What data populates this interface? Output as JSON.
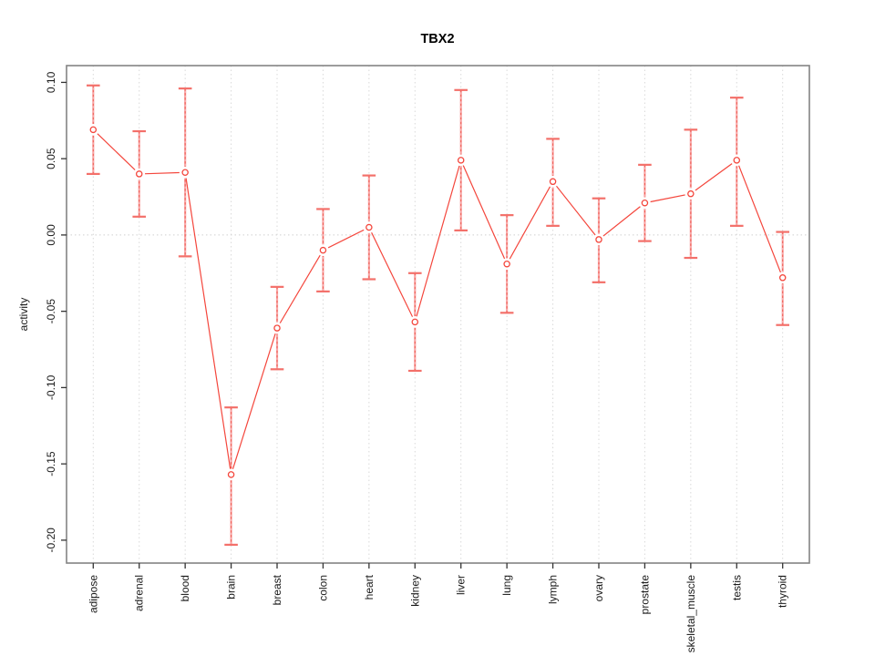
{
  "chart_data": {
    "type": "line",
    "title": "TBX2",
    "xlabel": "",
    "ylabel": "activity",
    "categories": [
      "adipose",
      "adrenal",
      "blood",
      "brain",
      "breast",
      "colon",
      "heart",
      "kidney",
      "liver",
      "lung",
      "lymph",
      "ovary",
      "prostate",
      "skeletal_muscle",
      "testis",
      "thyroid"
    ],
    "series": [
      {
        "name": "activity",
        "values": [
          0.069,
          0.04,
          0.041,
          -0.157,
          -0.061,
          -0.01,
          0.005,
          -0.057,
          0.049,
          -0.019,
          0.035,
          -0.003,
          0.021,
          0.027,
          0.049,
          -0.028
        ],
        "error_high": [
          0.098,
          0.068,
          0.096,
          -0.113,
          -0.034,
          0.017,
          0.039,
          -0.025,
          0.095,
          0.013,
          0.063,
          0.024,
          0.046,
          0.069,
          0.09,
          0.002
        ],
        "error_low": [
          0.04,
          0.012,
          -0.014,
          -0.203,
          -0.088,
          -0.037,
          -0.029,
          -0.089,
          0.003,
          -0.051,
          0.006,
          -0.031,
          -0.004,
          -0.015,
          0.006,
          -0.059
        ]
      }
    ],
    "ytick_labels": [
      "0.10",
      "0.05",
      "0.00",
      "-0.05",
      "-0.10",
      "-0.15",
      "-0.20"
    ],
    "ytick_values": [
      0.1,
      0.05,
      0.0,
      -0.05,
      -0.1,
      -0.15,
      -0.2
    ],
    "ylim": [
      -0.215,
      0.111
    ],
    "layout_hints": {
      "grid_vertical": "dotted at every category",
      "grid_horizontal": "dotted line at y=0 only",
      "legend": "none",
      "x_labels_rotated": true,
      "y_labels_rotated": true
    },
    "colors": {
      "series_line": "#f4463c",
      "point_stroke": "#f4463c",
      "error_bar_line": "#f8a8a8",
      "error_bar_dash": "#ef5a50",
      "error_bar_cap": "#f3706a",
      "grid": "#d9d9d9",
      "zero_line": "#d0d0d0",
      "box_border": "#848484",
      "tick": "#333333",
      "text": "#1a1a1a"
    }
  }
}
